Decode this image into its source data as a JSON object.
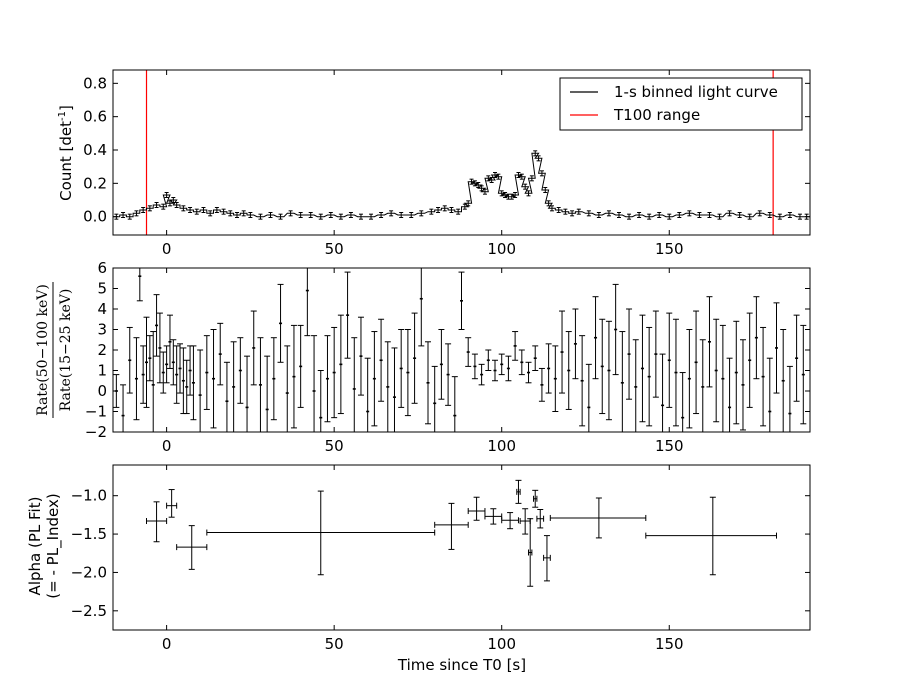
{
  "chart_data": [
    {
      "type": "line",
      "title": "",
      "xlabel": "",
      "ylabel": "Count [det",
      "ylabel_sup": "-1",
      "ylabel_end": "]",
      "xlim": [
        -16,
        192
      ],
      "ylim": [
        -0.11,
        0.88
      ],
      "xticks": [
        0,
        50,
        100,
        150
      ],
      "xtick_labels": [
        "0",
        "50",
        "100",
        "150"
      ],
      "yticks": [
        0.0,
        0.2,
        0.4,
        0.6,
        0.8
      ],
      "ytick_labels": [
        "0.0",
        "0.2",
        "0.4",
        "0.6",
        "0.8"
      ],
      "legend": {
        "placement": "top-right",
        "entries": [
          {
            "label": "1-s binned light curve",
            "color": "#000000"
          },
          {
            "label": "T100 range",
            "color": "#ff0000"
          }
        ]
      },
      "vlines": [
        {
          "x": -6,
          "color": "#ff0000"
        },
        {
          "x": 181,
          "color": "#ff0000"
        }
      ],
      "series": [
        {
          "name": "1-s binned light curve",
          "color": "#000000",
          "x": [
            -15,
            -13,
            -11,
            -9,
            -7,
            -5,
            -3,
            -1,
            0,
            1,
            2,
            3,
            5,
            7,
            9,
            11,
            13,
            15,
            17,
            19,
            21,
            23,
            25,
            28,
            31,
            34,
            37,
            40,
            43,
            46,
            49,
            52,
            55,
            58,
            61,
            64,
            67,
            70,
            73,
            76,
            79,
            81,
            83,
            85,
            87,
            89,
            90,
            91,
            92,
            93,
            94,
            95,
            96,
            97,
            98,
            99,
            100,
            101,
            102,
            103,
            104,
            105,
            106,
            107,
            108,
            109,
            110,
            111,
            112,
            113,
            114,
            115,
            117,
            119,
            121,
            123,
            126,
            129,
            132,
            135,
            138,
            141,
            144,
            147,
            150,
            153,
            156,
            159,
            162,
            165,
            168,
            171,
            174,
            177,
            180,
            183,
            186,
            189,
            191
          ],
          "y": [
            0.0,
            0.01,
            0.0,
            0.02,
            0.04,
            0.05,
            0.07,
            0.06,
            0.13,
            0.08,
            0.1,
            0.07,
            0.05,
            0.04,
            0.03,
            0.04,
            0.02,
            0.04,
            0.03,
            0.02,
            0.01,
            0.02,
            0.01,
            0.0,
            0.01,
            0.0,
            0.02,
            0.01,
            0.01,
            0.0,
            0.01,
            0.0,
            0.01,
            0.0,
            0.0,
            0.01,
            0.02,
            0.01,
            0.01,
            0.02,
            0.03,
            0.04,
            0.05,
            0.04,
            0.03,
            0.06,
            0.08,
            0.21,
            0.2,
            0.19,
            0.17,
            0.15,
            0.23,
            0.22,
            0.25,
            0.24,
            0.14,
            0.13,
            0.12,
            0.12,
            0.13,
            0.25,
            0.24,
            0.18,
            0.14,
            0.23,
            0.38,
            0.35,
            0.26,
            0.16,
            0.08,
            0.05,
            0.04,
            0.03,
            0.02,
            0.03,
            0.02,
            0.01,
            0.02,
            0.01,
            0.0,
            0.01,
            0.0,
            0.01,
            0.0,
            0.01,
            0.02,
            0.01,
            0.01,
            0.0,
            0.02,
            0.01,
            0.0,
            0.02,
            0.01,
            0.0,
            0.01,
            0.0,
            0.0
          ],
          "yerr": 0.015
        }
      ]
    },
    {
      "type": "scatter",
      "title": "",
      "xlabel": "",
      "ylabel_numerator": "Rate(50−100 keV)",
      "ylabel_denominator": "Rate(15−25 keV)",
      "xlim": [
        -16,
        192
      ],
      "ylim": [
        -2,
        6
      ],
      "xticks": [
        0,
        50,
        100,
        150
      ],
      "xtick_labels": [
        "0",
        "50",
        "100",
        "150"
      ],
      "yticks": [
        -2,
        -1,
        0,
        1,
        2,
        3,
        4,
        5,
        6
      ],
      "ytick_labels": [
        "−2",
        "−1",
        "0",
        "1",
        "2",
        "3",
        "4",
        "5",
        "6"
      ],
      "series": [
        {
          "name": "",
          "color": "#000000",
          "x": [
            -15,
            -13,
            -11,
            -9,
            -8,
            -7,
            -6,
            -5,
            -4,
            -3,
            -2,
            -1,
            0,
            1,
            2,
            3,
            4,
            5,
            6,
            7,
            8,
            10,
            12,
            14,
            16,
            18,
            20,
            22,
            24,
            26,
            28,
            30,
            32,
            34,
            36,
            38,
            40,
            42,
            44,
            46,
            48,
            50,
            52,
            54,
            56,
            58,
            60,
            62,
            64,
            66,
            68,
            70,
            72,
            74,
            76,
            78,
            80,
            82,
            84,
            86,
            88,
            90,
            92,
            94,
            96,
            98,
            100,
            102,
            104,
            106,
            108,
            110,
            112,
            114,
            116,
            118,
            120,
            122,
            124,
            126,
            128,
            130,
            132,
            134,
            136,
            138,
            140,
            142,
            144,
            146,
            148,
            150,
            152,
            154,
            156,
            158,
            160,
            162,
            164,
            166,
            168,
            170,
            172,
            174,
            176,
            178,
            180,
            182,
            184,
            186,
            188,
            190
          ],
          "y": [
            0.0,
            -1.2,
            1.5,
            0.6,
            5.6,
            0.8,
            1.4,
            1.6,
            0.3,
            3.2,
            2.1,
            0.9,
            1.3,
            2.4,
            1.4,
            0.8,
            1.1,
            0.5,
            0.2,
            1.0,
            0.4,
            -0.2,
            0.9,
            0.6,
            1.8,
            -0.5,
            0.2,
            1.0,
            -0.8,
            2.1,
            0.3,
            -0.9,
            0.6,
            3.3,
            -0.1,
            0.7,
            1.2,
            4.9,
            0.0,
            -1.3,
            0.6,
            0.9,
            1.3,
            3.7,
            0.1,
            1.7,
            -1.0,
            0.6,
            1.5,
            0.2,
            -0.3,
            1.1,
            0.9,
            1.6,
            4.5,
            0.4,
            -0.6,
            1.3,
            0.8,
            -1.2,
            4.4,
            1.9,
            1.2,
            0.8,
            1.5,
            1.0,
            1.3,
            1.1,
            2.2,
            1.4,
            0.9,
            1.6,
            0.3,
            1.1,
            0.6,
            1.9,
            1.0,
            2.3,
            0.5,
            -0.8,
            2.6,
            1.2,
            1.0,
            3.0,
            0.4,
            1.8,
            0.2,
            1.1,
            0.7,
            1.8,
            -0.7,
            1.5,
            0.9,
            -1.3,
            0.6,
            1.4,
            0.2,
            2.4,
            1.0,
            0.6,
            -0.8,
            0.9,
            0.3,
            1.5,
            2.6,
            0.7,
            -1.0,
            2.1,
            0.5,
            -1.1,
            1.6,
            0.8
          ],
          "yerr": [
            0.8,
            1.5,
            1.6,
            2.0,
            1.2,
            1.4,
            2.2,
            1.1,
            2.6,
            1.5,
            1.7,
            1.0,
            0.9,
            1.3,
            1.1,
            1.4,
            1.2,
            1.6,
            1.3,
            1.2,
            1.8,
            2.2,
            1.8,
            2.4,
            1.5,
            1.9,
            2.2,
            1.6,
            2.5,
            1.8,
            2.3,
            2.6,
            2.0,
            1.9,
            2.3,
            2.5,
            2.0,
            2.2,
            2.7,
            2.3,
            2.1,
            2.2,
            2.4,
            2.1,
            2.5,
            1.9,
            2.6,
            2.3,
            2.0,
            2.2,
            2.4,
            1.9,
            2.1,
            2.2,
            2.3,
            2.0,
            1.8,
            1.7,
            1.5,
            1.9,
            1.4,
            0.7,
            0.6,
            0.5,
            0.5,
            0.5,
            0.5,
            0.6,
            0.7,
            0.6,
            0.5,
            0.6,
            0.8,
            1.2,
            1.6,
            2.0,
            1.9,
            1.7,
            2.2,
            2.1,
            2.0,
            2.3,
            2.4,
            2.2,
            2.5,
            2.2,
            2.3,
            2.6,
            2.4,
            2.1,
            2.5,
            2.3,
            2.6,
            2.2,
            2.4,
            2.5,
            2.3,
            2.2,
            2.5,
            2.6,
            2.4,
            2.5,
            2.2,
            2.3,
            2.0,
            2.4,
            2.6,
            2.2,
            2.5,
            2.3,
            2.1,
            2.4
          ]
        }
      ]
    },
    {
      "type": "scatter",
      "title": "",
      "xlabel": "Time since T0 [s]",
      "ylabel_line1": "Alpha (PL Fit)",
      "ylabel_line2": "(= - PL_Index)",
      "xlim": [
        -16,
        192
      ],
      "ylim": [
        -2.75,
        -0.6
      ],
      "xticks": [
        0,
        50,
        100,
        150
      ],
      "xtick_labels": [
        "0",
        "50",
        "100",
        "150"
      ],
      "yticks": [
        -2.5,
        -2.0,
        -1.5,
        -1.0
      ],
      "ytick_labels": [
        "−2.5",
        "−2.0",
        "−1.5",
        "−1.0"
      ],
      "series": [
        {
          "name": "",
          "color": "#000000",
          "points": [
            {
              "x": -3,
              "xlo": -6,
              "xhi": 0,
              "y": -1.33,
              "ylo": -1.6,
              "yhi": -1.08
            },
            {
              "x": 1.5,
              "xlo": 0,
              "xhi": 3,
              "y": -1.13,
              "ylo": -1.28,
              "yhi": -0.92
            },
            {
              "x": 7.5,
              "xlo": 3,
              "xhi": 12,
              "y": -1.67,
              "ylo": -1.96,
              "yhi": -1.39
            },
            {
              "x": 46,
              "xlo": 12,
              "xhi": 80,
              "y": -1.48,
              "ylo": -2.03,
              "yhi": -0.94
            },
            {
              "x": 85,
              "xlo": 80,
              "xhi": 90,
              "y": -1.38,
              "ylo": -1.7,
              "yhi": -1.1
            },
            {
              "x": 92.5,
              "xlo": 90,
              "xhi": 95,
              "y": -1.2,
              "ylo": -1.32,
              "yhi": -1.02
            },
            {
              "x": 97.5,
              "xlo": 95,
              "xhi": 100,
              "y": -1.27,
              "ylo": -1.37,
              "yhi": -1.17
            },
            {
              "x": 102.5,
              "xlo": 100,
              "xhi": 105,
              "y": -1.32,
              "ylo": -1.43,
              "yhi": -1.22
            },
            {
              "x": 105,
              "xlo": 104.5,
              "xhi": 105.5,
              "y": -0.95,
              "ylo": -1.1,
              "yhi": -0.8
            },
            {
              "x": 107,
              "xlo": 105.5,
              "xhi": 108.5,
              "y": -1.33,
              "ylo": -1.5,
              "yhi": -1.17
            },
            {
              "x": 108.5,
              "xlo": 108,
              "xhi": 109,
              "y": -1.74,
              "ylo": -2.18,
              "yhi": -1.3
            },
            {
              "x": 110,
              "xlo": 109.5,
              "xhi": 110.5,
              "y": -1.04,
              "ylo": -1.15,
              "yhi": -0.93
            },
            {
              "x": 111.5,
              "xlo": 110.5,
              "xhi": 112.5,
              "y": -1.3,
              "ylo": -1.42,
              "yhi": -1.18
            },
            {
              "x": 113.5,
              "xlo": 112.5,
              "xhi": 114.5,
              "y": -1.81,
              "ylo": -2.11,
              "yhi": -1.52
            },
            {
              "x": 129,
              "xlo": 114.5,
              "xhi": 143,
              "y": -1.29,
              "ylo": -1.55,
              "yhi": -1.03
            },
            {
              "x": 163,
              "xlo": 143,
              "xhi": 182,
              "y": -1.52,
              "ylo": -2.03,
              "yhi": -1.02
            }
          ]
        }
      ]
    }
  ]
}
